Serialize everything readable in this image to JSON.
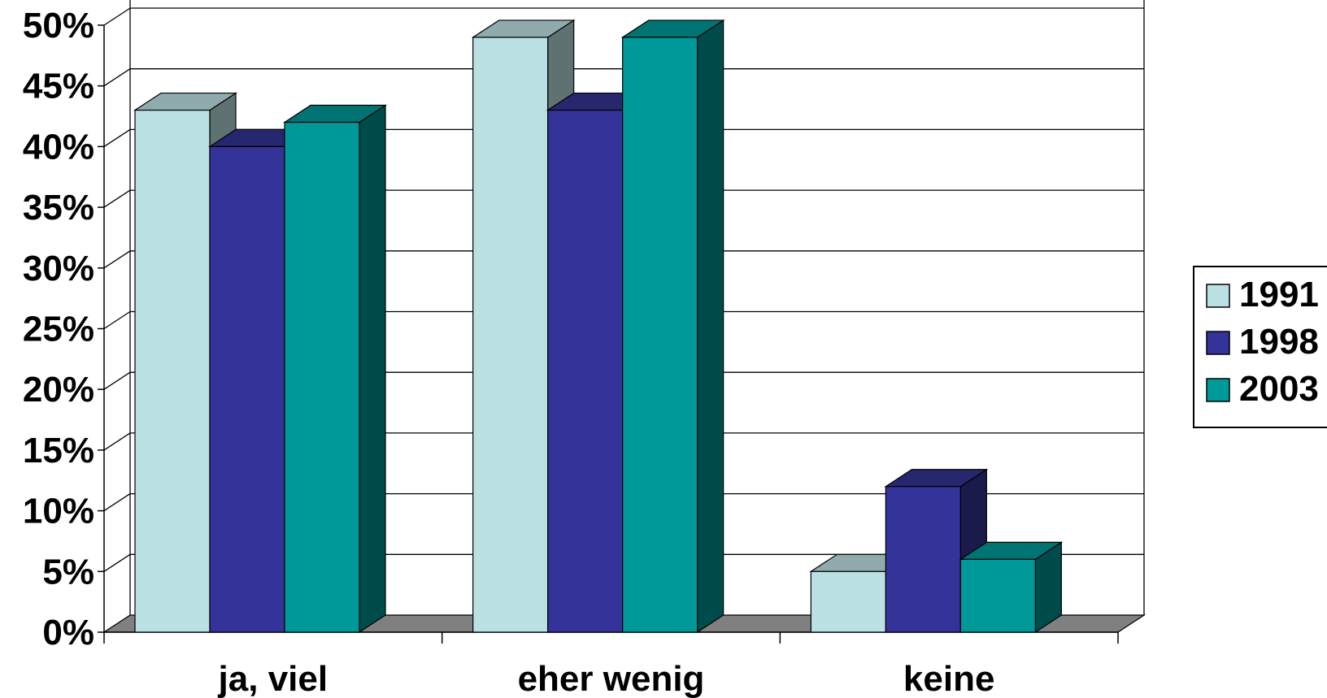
{
  "chart_data": {
    "type": "bar",
    "style": "3d-clustered-column",
    "categories": [
      "ja, viel",
      "eher wenig",
      "keine"
    ],
    "series": [
      {
        "name": "1991",
        "values": [
          43,
          49,
          5
        ],
        "color": "#bbe0e3",
        "top_color": "#8fabad",
        "side_color": "#5f7272"
      },
      {
        "name": "1998",
        "values": [
          40,
          43,
          12
        ],
        "color": "#333399",
        "top_color": "#27276f",
        "side_color": "#1a1a4b"
      },
      {
        "name": "2003",
        "values": [
          42,
          49,
          6
        ],
        "color": "#009999",
        "top_color": "#007373",
        "side_color": "#004c4c"
      }
    ],
    "y_ticks": [
      "0%",
      "5%",
      "10%",
      "15%",
      "20%",
      "25%",
      "30%",
      "35%",
      "40%",
      "45%",
      "50%"
    ],
    "ylim": [
      0,
      50
    ],
    "y_unit": "%",
    "grid": true,
    "legend_position": "right",
    "floor_color": "#808080",
    "title": "",
    "xlabel": "",
    "ylabel": ""
  }
}
